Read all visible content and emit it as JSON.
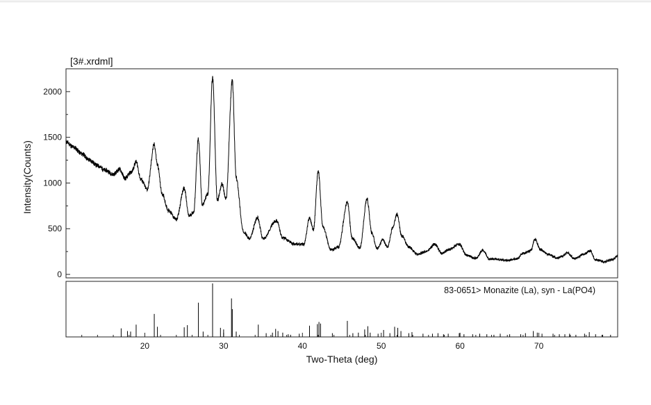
{
  "window": {
    "file_label": "[3#.xrdml]"
  },
  "chart_data": {
    "type": "line",
    "title": "[3#.xrdml]",
    "xlabel": "Two-Theta (deg)",
    "ylabel": "Intensity(Counts)",
    "xlim": [
      10,
      80
    ],
    "ylim": [
      0,
      2250
    ],
    "x_ticks": [
      20,
      30,
      40,
      50,
      60,
      70
    ],
    "x_tick_labels": [
      "20",
      "30",
      "40",
      "50",
      "60",
      "70"
    ],
    "y_ticks": [
      0,
      500,
      1000,
      1500,
      2000
    ],
    "y_tick_labels": [
      "0",
      "500",
      "1000",
      "1500",
      "2000"
    ],
    "grid": false,
    "series": [
      {
        "values": [
          [
            10,
            1450
          ],
          [
            11,
            1390
          ],
          [
            12,
            1320
          ],
          [
            13,
            1250
          ],
          [
            14,
            1190
          ],
          [
            15,
            1140
          ],
          [
            16,
            1095
          ],
          [
            16.8,
            1150
          ],
          [
            17.5,
            1050
          ],
          [
            18.3,
            1120
          ],
          [
            18.9,
            1230
          ],
          [
            19.5,
            1040
          ],
          [
            20.3,
            930
          ],
          [
            21.2,
            1420
          ],
          [
            21.6,
            1200
          ],
          [
            22.2,
            880
          ],
          [
            23,
            700
          ],
          [
            24,
            600
          ],
          [
            25,
            940
          ],
          [
            25.6,
            640
          ],
          [
            26.2,
            680
          ],
          [
            26.8,
            1480
          ],
          [
            27.3,
            760
          ],
          [
            28,
            880
          ],
          [
            28.6,
            2150
          ],
          [
            29.2,
            810
          ],
          [
            29.8,
            990
          ],
          [
            30.3,
            820
          ],
          [
            31.1,
            2120
          ],
          [
            31.6,
            1050
          ],
          [
            32.5,
            470
          ],
          [
            33.3,
            390
          ],
          [
            34.3,
            620
          ],
          [
            35,
            390
          ],
          [
            36.7,
            590
          ],
          [
            37.5,
            400
          ],
          [
            39,
            330
          ],
          [
            40.2,
            330
          ],
          [
            40.9,
            620
          ],
          [
            41.4,
            490
          ],
          [
            42,
            1130
          ],
          [
            42.6,
            520
          ],
          [
            43.6,
            270
          ],
          [
            44.6,
            300
          ],
          [
            45.7,
            790
          ],
          [
            46.3,
            400
          ],
          [
            47.3,
            290
          ],
          [
            48.2,
            830
          ],
          [
            48.8,
            450
          ],
          [
            49.5,
            280
          ],
          [
            50.2,
            380
          ],
          [
            50.8,
            300
          ],
          [
            51.5,
            520
          ],
          [
            52,
            660
          ],
          [
            52.6,
            420
          ],
          [
            53.5,
            300
          ],
          [
            54.6,
            220
          ],
          [
            55.7,
            250
          ],
          [
            56.8,
            330
          ],
          [
            57.7,
            230
          ],
          [
            58.5,
            270
          ],
          [
            59.9,
            330
          ],
          [
            60.8,
            210
          ],
          [
            62,
            175
          ],
          [
            62.9,
            265
          ],
          [
            63.7,
            170
          ],
          [
            66,
            155
          ],
          [
            67.2,
            170
          ],
          [
            68,
            230
          ],
          [
            69,
            260
          ],
          [
            69.5,
            390
          ],
          [
            70.2,
            270
          ],
          [
            71.2,
            220
          ],
          [
            72.3,
            180
          ],
          [
            73,
            200
          ],
          [
            73.6,
            240
          ],
          [
            74.5,
            170
          ],
          [
            75.7,
            220
          ],
          [
            76.5,
            260
          ],
          [
            77.2,
            160
          ],
          [
            78.3,
            140
          ],
          [
            79.3,
            160
          ],
          [
            80,
            200
          ]
        ]
      }
    ],
    "reference": {
      "label": "83-0651> Monazite (La), syn - La(PO4)",
      "rel_max": 100,
      "lines": [
        [
          17.0,
          16
        ],
        [
          17.8,
          11
        ],
        [
          18.2,
          10
        ],
        [
          18.9,
          23
        ],
        [
          21.2,
          43
        ],
        [
          21.6,
          19
        ],
        [
          25.0,
          18
        ],
        [
          25.4,
          22
        ],
        [
          26.8,
          64
        ],
        [
          27.4,
          10
        ],
        [
          28.6,
          100
        ],
        [
          29.6,
          17
        ],
        [
          30.0,
          14
        ],
        [
          31.0,
          72
        ],
        [
          31.1,
          52
        ],
        [
          31.6,
          10
        ],
        [
          34.4,
          23
        ],
        [
          35.4,
          7
        ],
        [
          36.2,
          8
        ],
        [
          36.6,
          15
        ],
        [
          36.9,
          11
        ],
        [
          37.5,
          8
        ],
        [
          38.2,
          5
        ],
        [
          38.5,
          4
        ],
        [
          39.6,
          6
        ],
        [
          40.9,
          21
        ],
        [
          41.9,
          24
        ],
        [
          42.1,
          28
        ],
        [
          42.3,
          25
        ],
        [
          43.8,
          7
        ],
        [
          45.7,
          30
        ],
        [
          46.4,
          7
        ],
        [
          47.1,
          8
        ],
        [
          47.9,
          14
        ],
        [
          48.3,
          20
        ],
        [
          48.6,
          8
        ],
        [
          49.6,
          6
        ],
        [
          50.3,
          13
        ],
        [
          51.1,
          7
        ],
        [
          51.7,
          19
        ],
        [
          52.1,
          17
        ],
        [
          52.5,
          11
        ],
        [
          53.5,
          7
        ],
        [
          53.9,
          9
        ],
        [
          55.3,
          6
        ],
        [
          56.5,
          6
        ],
        [
          57.2,
          7
        ],
        [
          57.9,
          5
        ],
        [
          58.5,
          6
        ],
        [
          59.9,
          7
        ],
        [
          60.5,
          5
        ],
        [
          61.6,
          5
        ],
        [
          62.5,
          6
        ],
        [
          63.4,
          5
        ],
        [
          64.3,
          4
        ],
        [
          65.1,
          6
        ],
        [
          66.3,
          5
        ],
        [
          67.7,
          5
        ],
        [
          68.3,
          7
        ],
        [
          69.3,
          11
        ],
        [
          69.8,
          8
        ],
        [
          70.4,
          6
        ],
        [
          71.8,
          6
        ],
        [
          72.6,
          5
        ],
        [
          73.3,
          5
        ],
        [
          73.9,
          6
        ],
        [
          74.7,
          4
        ],
        [
          75.8,
          6
        ],
        [
          76.4,
          9
        ],
        [
          77.2,
          5
        ],
        [
          78.1,
          4
        ],
        [
          79.1,
          4
        ]
      ]
    }
  }
}
